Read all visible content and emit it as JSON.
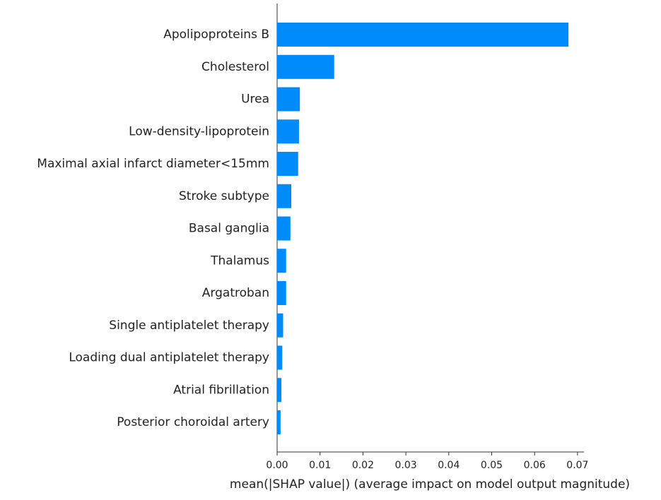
{
  "chart_data": {
    "type": "barh",
    "xlabel": "mean(|SHAP value|) (average impact on model output magnitude)",
    "categories": [
      "Apolipoproteins B",
      "Cholesterol",
      "Urea",
      "Low-density-lipoprotein",
      "Maximal axial infarct diameter<15mm",
      "Stroke subtype",
      "Basal ganglia",
      "Thalamus",
      "Argatroban",
      "Single antiplatelet therapy",
      "Loading dual antiplatelet therapy",
      "Atrial fibrillation",
      "Posterior choroidal artery"
    ],
    "values": [
      0.0679,
      0.0133,
      0.0053,
      0.0051,
      0.0049,
      0.0033,
      0.0031,
      0.0021,
      0.0021,
      0.0014,
      0.0012,
      0.001,
      0.0008
    ],
    "color": "#008bfb",
    "xlim": [
      0,
      0.0715
    ],
    "xticks": [
      {
        "value": 0,
        "label": "0.00"
      },
      {
        "value": 0.01,
        "label": "0.01"
      },
      {
        "value": 0.02,
        "label": "0.02"
      },
      {
        "value": 0.03,
        "label": "0.03"
      },
      {
        "value": 0.04,
        "label": "0.04"
      },
      {
        "value": 0.05,
        "label": "0.05"
      },
      {
        "value": 0.06,
        "label": "0.06"
      },
      {
        "value": 0.07,
        "label": "0.07"
      }
    ]
  }
}
